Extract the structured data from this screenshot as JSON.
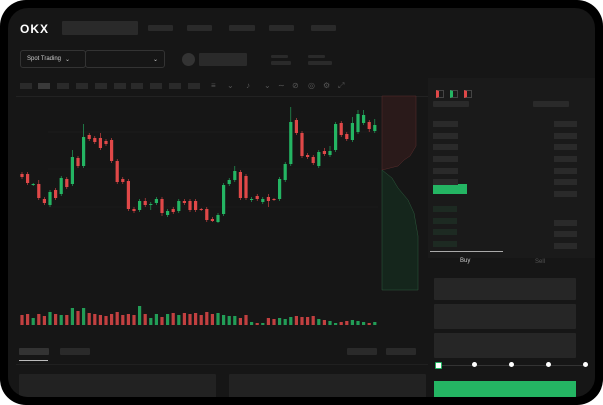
{
  "header": {
    "logo": "OKX",
    "market_selector": "Spot Trading",
    "pair_selector_icon": "chevron-down-icon"
  },
  "toolbar": {
    "icons": [
      "line-style-icon",
      "chevron-down-icon",
      "indicator-icon",
      "chevron-down-icon",
      "wave-icon",
      "ruler-icon",
      "camera-icon",
      "settings-icon",
      "fullscreen-icon"
    ]
  },
  "orderbook": {
    "view_icons": [
      "both-sides-icon",
      "bids-only-icon",
      "asks-only-icon"
    ]
  },
  "trade": {
    "tabs": [
      "Buy",
      "Sell"
    ],
    "active_tab": "Buy",
    "slider_percent": 0,
    "slider_steps": 5
  },
  "colors": {
    "up": "#24b563",
    "down": "#e04848",
    "background": "#161616",
    "accent": "#24b563"
  },
  "chart_data": {
    "type": "candlestick",
    "ohlc": [
      [
        118,
        120,
        113,
        115
      ],
      [
        118,
        120,
        107,
        109
      ],
      [
        107,
        109,
        106,
        108
      ],
      [
        108,
        112,
        92,
        94
      ],
      [
        93,
        95,
        87,
        89
      ],
      [
        87,
        102,
        85,
        100
      ],
      [
        102,
        104,
        92,
        94
      ],
      [
        98,
        116,
        96,
        114
      ],
      [
        113,
        115,
        103,
        105
      ],
      [
        108,
        142,
        106,
        135
      ],
      [
        134,
        136,
        124,
        126
      ],
      [
        126,
        168,
        124,
        155
      ],
      [
        157,
        159,
        151,
        153
      ],
      [
        154,
        156,
        148,
        150
      ],
      [
        154,
        159,
        142,
        144
      ],
      [
        151,
        153,
        146,
        148
      ],
      [
        152,
        154,
        129,
        131
      ],
      [
        131,
        133,
        108,
        110
      ],
      [
        113,
        115,
        108,
        110
      ],
      [
        111,
        113,
        81,
        83
      ],
      [
        83,
        85,
        79,
        81
      ],
      [
        82,
        93,
        80,
        91
      ],
      [
        91,
        94,
        85,
        87
      ],
      [
        87,
        90,
        82,
        88
      ],
      [
        89,
        95,
        87,
        93
      ],
      [
        93,
        95,
        76,
        79
      ],
      [
        77,
        83,
        75,
        81
      ],
      [
        83,
        85,
        78,
        80
      ],
      [
        81,
        93,
        79,
        91
      ],
      [
        91,
        93,
        87,
        89
      ],
      [
        91,
        93,
        80,
        82
      ],
      [
        91,
        93,
        80,
        82
      ],
      [
        83,
        84,
        81,
        82
      ],
      [
        83,
        85,
        70,
        72
      ],
      [
        73,
        75,
        70,
        71
      ],
      [
        70,
        79,
        69,
        77
      ],
      [
        78,
        109,
        76,
        107
      ],
      [
        108,
        114,
        106,
        112
      ],
      [
        112,
        126,
        110,
        121
      ],
      [
        120,
        122,
        92,
        94
      ],
      [
        116,
        118,
        92,
        94
      ],
      [
        92,
        95,
        90,
        93
      ],
      [
        96,
        98,
        91,
        93
      ],
      [
        90,
        95,
        88,
        93
      ],
      [
        95,
        98,
        85,
        91
      ],
      [
        93,
        94,
        91,
        92
      ],
      [
        93,
        115,
        91,
        113
      ],
      [
        112,
        130,
        110,
        128
      ],
      [
        128,
        185,
        126,
        170
      ],
      [
        172,
        174,
        157,
        159
      ],
      [
        159,
        161,
        134,
        136
      ],
      [
        137,
        139,
        133,
        135
      ],
      [
        135,
        137,
        127,
        129
      ],
      [
        126,
        142,
        124,
        140
      ],
      [
        141,
        144,
        136,
        138
      ],
      [
        137,
        146,
        135,
        141
      ],
      [
        142,
        170,
        140,
        168
      ],
      [
        169,
        171,
        155,
        157
      ],
      [
        158,
        160,
        151,
        153
      ],
      [
        152,
        175,
        150,
        169
      ],
      [
        160,
        182,
        158,
        178
      ],
      [
        169,
        182,
        167,
        177
      ],
      [
        170,
        172,
        160,
        163
      ],
      [
        161,
        173,
        159,
        167
      ]
    ],
    "volume": [
      10,
      11,
      7,
      11,
      9,
      13,
      11,
      10,
      10,
      17,
      14,
      17,
      12,
      11,
      10,
      9,
      11,
      13,
      10,
      11,
      10,
      19,
      11,
      7,
      11,
      8,
      11,
      12,
      10,
      12,
      11,
      12,
      10,
      13,
      11,
      12,
      10,
      9,
      9,
      7,
      10,
      3,
      2,
      2,
      7,
      6,
      7,
      6,
      8,
      9,
      8,
      8,
      9,
      6,
      5,
      4,
      2,
      3,
      4,
      5,
      4,
      3,
      2,
      3
    ]
  }
}
